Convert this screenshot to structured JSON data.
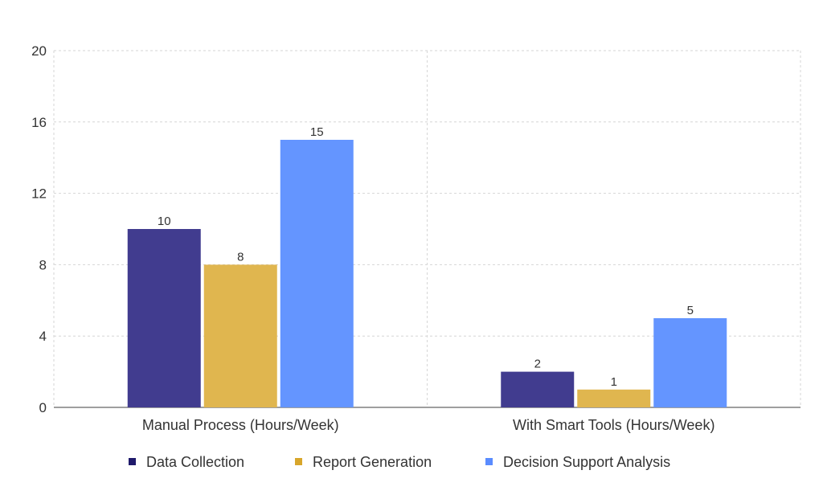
{
  "chart_data": {
    "type": "bar",
    "categories": [
      "Manual Process (Hours/Week)",
      "With Smart Tools (Hours/Week)"
    ],
    "series": [
      {
        "name": "Data Collection",
        "values": [
          10,
          2
        ],
        "color": "#413c8f"
      },
      {
        "name": "Report Generation",
        "values": [
          8,
          1
        ],
        "color": "#e0b64f"
      },
      {
        "name": "Decision Support Analysis",
        "values": [
          15,
          5
        ],
        "color": "#6495ff"
      }
    ],
    "legend_markers": [
      "#1f1a6b",
      "#d8a62b",
      "#5a8cff"
    ],
    "ylim": [
      0,
      20
    ],
    "yticks": [
      0,
      4,
      8,
      12,
      16,
      20
    ],
    "grid": true,
    "grid_color": "#d6d6d6",
    "legend_position": "bottom",
    "data_labels": true
  }
}
